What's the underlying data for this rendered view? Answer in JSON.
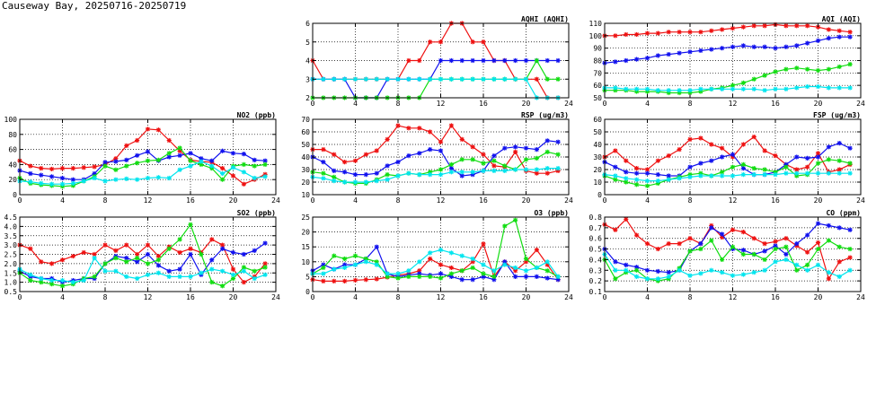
{
  "page": {
    "title": "Causeway Bay, 20250716-20250719"
  },
  "colors": {
    "red": "#ee1111",
    "blue": "#1111ee",
    "green": "#11dd11",
    "cyan": "#00e5ee"
  },
  "chart_data": [
    {
      "id": "aqhi",
      "type": "line",
      "title": "AQHI (AQHI)",
      "xlim": [
        0,
        24
      ],
      "xticks": [
        0,
        4,
        8,
        12,
        16,
        20,
        24
      ],
      "ylim": [
        2,
        6
      ],
      "yticks": [
        2,
        3,
        4,
        5,
        6
      ],
      "grid": true,
      "series": [
        {
          "color": "#ee1111",
          "values": [
            4,
            3,
            3,
            3,
            3,
            3,
            3,
            3,
            3,
            4,
            4,
            5,
            5,
            6,
            6,
            5,
            5,
            4,
            4,
            3,
            3,
            3,
            2,
            2
          ]
        },
        {
          "color": "#1111ee",
          "values": [
            3,
            3,
            3,
            3,
            2,
            2,
            2,
            3,
            3,
            3,
            3,
            3,
            4,
            4,
            4,
            4,
            4,
            4,
            4,
            4,
            4,
            4,
            4,
            4
          ]
        },
        {
          "color": "#11dd11",
          "values": [
            2,
            2,
            2,
            2,
            2,
            2,
            2,
            2,
            2,
            2,
            2,
            3,
            3,
            3,
            3,
            3,
            3,
            3,
            3,
            3,
            3,
            4,
            3,
            3
          ]
        },
        {
          "color": "#00e5ee",
          "values": [
            3,
            3,
            3,
            3,
            3,
            3,
            3,
            3,
            3,
            3,
            3,
            3,
            3,
            3,
            3,
            3,
            3,
            3,
            3,
            3,
            3,
            2,
            2,
            2
          ]
        }
      ]
    },
    {
      "id": "aqi",
      "type": "line",
      "title": "AQI (AQI)",
      "xlim": [
        0,
        24
      ],
      "xticks": [
        0,
        4,
        8,
        12,
        16,
        20,
        24
      ],
      "ylim": [
        50,
        110
      ],
      "yticks": [
        50,
        60,
        70,
        80,
        90,
        100,
        110
      ],
      "grid": true,
      "series": [
        {
          "color": "#ee1111",
          "values": [
            100,
            100,
            101,
            101,
            102,
            102,
            103,
            103,
            103,
            103,
            104,
            105,
            106,
            107,
            108,
            108,
            109,
            108,
            108,
            108,
            107,
            105,
            104,
            103
          ]
        },
        {
          "color": "#1111ee",
          "values": [
            78,
            79,
            80,
            81,
            82,
            84,
            85,
            86,
            87,
            88,
            89,
            90,
            91,
            92,
            91,
            91,
            90,
            91,
            92,
            94,
            96,
            98,
            99,
            99
          ]
        },
        {
          "color": "#11dd11",
          "values": [
            56,
            56,
            56,
            55,
            55,
            55,
            54,
            54,
            54,
            55,
            57,
            58,
            60,
            62,
            65,
            68,
            71,
            73,
            74,
            73,
            72,
            73,
            75,
            77
          ]
        },
        {
          "color": "#00e5ee",
          "values": [
            58,
            58,
            57,
            57,
            57,
            56,
            56,
            56,
            56,
            57,
            57,
            57,
            57,
            57,
            57,
            56,
            57,
            57,
            58,
            59,
            59,
            58,
            58,
            58
          ]
        }
      ]
    },
    {
      "id": "no2",
      "type": "line",
      "title": "NO2 (ppb)",
      "xlim": [
        0,
        24
      ],
      "xticks": [
        0,
        4,
        8,
        12,
        16,
        20,
        24
      ],
      "ylim": [
        0,
        100
      ],
      "yticks": [
        0,
        20,
        40,
        60,
        80,
        100
      ],
      "grid": true,
      "series": [
        {
          "color": "#ee1111",
          "values": [
            45,
            38,
            35,
            34,
            35,
            35,
            36,
            37,
            40,
            48,
            65,
            72,
            87,
            86,
            72,
            58,
            46,
            44,
            43,
            35,
            25,
            14,
            20,
            27
          ]
        },
        {
          "color": "#1111ee",
          "values": [
            32,
            28,
            26,
            24,
            22,
            20,
            20,
            28,
            43,
            44,
            46,
            52,
            57,
            45,
            50,
            52,
            55,
            48,
            45,
            58,
            55,
            54,
            46,
            45
          ]
        },
        {
          "color": "#11dd11",
          "values": [
            22,
            15,
            13,
            12,
            11,
            12,
            18,
            24,
            38,
            33,
            38,
            42,
            45,
            46,
            55,
            62,
            45,
            40,
            35,
            20,
            38,
            40,
            38,
            40
          ]
        },
        {
          "color": "#00e5ee",
          "values": [
            18,
            17,
            15,
            14,
            14,
            15,
            18,
            22,
            18,
            20,
            21,
            20,
            22,
            23,
            22,
            33,
            38,
            44,
            38,
            28,
            36,
            30,
            22,
            24
          ]
        }
      ]
    },
    {
      "id": "rsp",
      "type": "line",
      "title": "RSP (ug/m3)",
      "xlim": [
        0,
        24
      ],
      "xticks": [
        0,
        4,
        8,
        12,
        16,
        20,
        24
      ],
      "ylim": [
        10,
        70
      ],
      "yticks": [
        10,
        20,
        30,
        40,
        50,
        60,
        70
      ],
      "grid": true,
      "series": [
        {
          "color": "#ee1111",
          "values": [
            46,
            46,
            42,
            36,
            37,
            42,
            45,
            54,
            65,
            63,
            63,
            60,
            52,
            65,
            54,
            48,
            42,
            33,
            32,
            44,
            29,
            27,
            27,
            29
          ]
        },
        {
          "color": "#1111ee",
          "values": [
            40,
            36,
            29,
            28,
            26,
            26,
            27,
            33,
            36,
            41,
            43,
            46,
            45,
            31,
            25,
            26,
            29,
            41,
            47,
            48,
            47,
            46,
            53,
            52
          ]
        },
        {
          "color": "#11dd11",
          "values": [
            28,
            27,
            24,
            20,
            19,
            19,
            22,
            26,
            25,
            27,
            26,
            28,
            30,
            34,
            38,
            38,
            35,
            37,
            33,
            30,
            38,
            39,
            44,
            42
          ]
        },
        {
          "color": "#00e5ee",
          "values": [
            24,
            23,
            21,
            20,
            20,
            20,
            21,
            22,
            25,
            27,
            26,
            26,
            26,
            28,
            28,
            28,
            29,
            29,
            29,
            30,
            30,
            30,
            31,
            31
          ]
        }
      ]
    },
    {
      "id": "fsp",
      "type": "line",
      "title": "FSP (ug/m3)",
      "xlim": [
        0,
        24
      ],
      "xticks": [
        0,
        4,
        8,
        12,
        16,
        20,
        24
      ],
      "ylim": [
        0,
        60
      ],
      "yticks": [
        0,
        10,
        20,
        30,
        40,
        50,
        60
      ],
      "grid": true,
      "series": [
        {
          "color": "#ee1111",
          "values": [
            30,
            35,
            27,
            21,
            20,
            27,
            31,
            36,
            44,
            45,
            40,
            37,
            30,
            40,
            46,
            35,
            31,
            24,
            20,
            22,
            33,
            18,
            20,
            24
          ]
        },
        {
          "color": "#1111ee",
          "values": [
            26,
            22,
            18,
            17,
            17,
            16,
            15,
            15,
            22,
            25,
            27,
            30,
            32,
            21,
            16,
            16,
            18,
            24,
            30,
            29,
            30,
            38,
            41,
            37
          ]
        },
        {
          "color": "#11dd11",
          "values": [
            15,
            12,
            10,
            8,
            7,
            9,
            12,
            14,
            16,
            17,
            15,
            18,
            22,
            24,
            21,
            20,
            18,
            22,
            15,
            16,
            25,
            28,
            27,
            25
          ]
        },
        {
          "color": "#00e5ee",
          "values": [
            16,
            15,
            13,
            12,
            11,
            11,
            12,
            13,
            14,
            15,
            15,
            15,
            15,
            16,
            16,
            16,
            16,
            17,
            17,
            17,
            17,
            17,
            17,
            17
          ]
        }
      ]
    },
    {
      "id": "so2",
      "type": "line",
      "title": "SO2 (ppb)",
      "xlim": [
        0,
        24
      ],
      "xticks": [
        0,
        4,
        8,
        12,
        16,
        20,
        24
      ],
      "ylim": [
        0.5,
        4.5
      ],
      "yticks": [
        0.5,
        1.0,
        1.5,
        2.0,
        2.5,
        3.0,
        3.5,
        4.0,
        4.5
      ],
      "grid": true,
      "series": [
        {
          "color": "#ee1111",
          "values": [
            3.0,
            2.8,
            2.1,
            2.0,
            2.2,
            2.4,
            2.6,
            2.5,
            3.0,
            2.7,
            3.0,
            2.5,
            3.0,
            2.4,
            2.9,
            2.6,
            2.8,
            2.6,
            3.3,
            3.0,
            1.7,
            1.0,
            1.3,
            2.0
          ]
        },
        {
          "color": "#1111ee",
          "values": [
            1.6,
            1.3,
            1.2,
            1.2,
            1.0,
            1.1,
            1.2,
            1.2,
            2.0,
            2.4,
            2.3,
            2.1,
            2.5,
            1.9,
            1.6,
            1.7,
            2.5,
            1.4,
            2.2,
            2.8,
            2.6,
            2.5,
            2.7,
            3.1
          ]
        },
        {
          "color": "#11dd11",
          "values": [
            1.5,
            1.1,
            1.0,
            0.9,
            0.8,
            0.9,
            1.2,
            1.3,
            2.0,
            2.3,
            2.1,
            2.3,
            2.0,
            2.2,
            2.8,
            3.3,
            4.1,
            2.5,
            1.0,
            0.8,
            1.2,
            1.8,
            1.6,
            1.8
          ]
        },
        {
          "color": "#00e5ee",
          "values": [
            1.7,
            1.4,
            1.2,
            1.1,
            1.1,
            1.0,
            1.1,
            2.3,
            1.6,
            1.6,
            1.3,
            1.2,
            1.4,
            1.5,
            1.3,
            1.3,
            1.3,
            1.5,
            1.7,
            1.6,
            1.4,
            1.6,
            1.2,
            1.4
          ]
        }
      ]
    },
    {
      "id": "o3",
      "type": "line",
      "title": "O3 (ppb)",
      "xlim": [
        0,
        24
      ],
      "xticks": [
        0,
        4,
        8,
        12,
        16,
        20,
        24
      ],
      "ylim": [
        0,
        25
      ],
      "yticks": [
        0,
        5,
        10,
        15,
        20,
        25
      ],
      "grid": true,
      "series": [
        {
          "color": "#ee1111",
          "values": [
            4,
            3.5,
            3.5,
            3.5,
            3.8,
            4,
            4.2,
            4.8,
            5.5,
            6,
            7,
            11,
            9,
            8,
            7,
            10,
            16,
            5,
            10,
            7,
            10,
            14,
            9,
            4
          ]
        },
        {
          "color": "#1111ee",
          "values": [
            7,
            9,
            7.5,
            9,
            9,
            11,
            15,
            6,
            5,
            5.5,
            6,
            5.5,
            6,
            5,
            4,
            4,
            5,
            4,
            10,
            5,
            5,
            5,
            4.5,
            4
          ]
        },
        {
          "color": "#11dd11",
          "values": [
            6,
            8,
            12,
            11,
            12,
            11,
            10,
            5,
            4.5,
            5,
            5,
            5,
            4.5,
            6,
            7,
            8,
            6,
            5,
            22,
            24,
            11,
            8,
            7,
            5
          ]
        },
        {
          "color": "#00e5ee",
          "values": [
            6,
            6,
            7.5,
            8,
            9,
            10,
            9,
            6,
            6,
            7,
            10,
            13,
            14,
            13,
            12,
            11,
            9,
            7,
            9,
            8,
            7,
            8,
            10,
            5
          ]
        }
      ]
    },
    {
      "id": "co",
      "type": "line",
      "title": "CO (ppm)",
      "xlim": [
        0,
        24
      ],
      "xticks": [
        0,
        4,
        8,
        12,
        16,
        20,
        24
      ],
      "ylim": [
        0.1,
        0.8
      ],
      "yticks": [
        0.1,
        0.2,
        0.3,
        0.4,
        0.5,
        0.6,
        0.7,
        0.8
      ],
      "grid": true,
      "series": [
        {
          "color": "#ee1111",
          "values": [
            0.73,
            0.68,
            0.78,
            0.63,
            0.55,
            0.5,
            0.55,
            0.55,
            0.6,
            0.55,
            0.72,
            0.61,
            0.68,
            0.66,
            0.6,
            0.55,
            0.57,
            0.6,
            0.53,
            0.47,
            0.56,
            0.22,
            0.38,
            0.42
          ]
        },
        {
          "color": "#1111ee",
          "values": [
            0.5,
            0.38,
            0.35,
            0.33,
            0.3,
            0.29,
            0.28,
            0.3,
            0.48,
            0.55,
            0.7,
            0.64,
            0.5,
            0.49,
            0.45,
            0.48,
            0.53,
            0.45,
            0.55,
            0.63,
            0.74,
            0.72,
            0.7,
            0.68
          ]
        },
        {
          "color": "#11dd11",
          "values": [
            0.4,
            0.22,
            0.28,
            0.3,
            0.22,
            0.2,
            0.22,
            0.32,
            0.48,
            0.5,
            0.58,
            0.4,
            0.52,
            0.45,
            0.45,
            0.4,
            0.5,
            0.52,
            0.3,
            0.35,
            0.5,
            0.58,
            0.52,
            0.5
          ]
        },
        {
          "color": "#00e5ee",
          "values": [
            0.45,
            0.3,
            0.3,
            0.24,
            0.22,
            0.22,
            0.24,
            0.3,
            0.25,
            0.27,
            0.3,
            0.28,
            0.25,
            0.26,
            0.28,
            0.3,
            0.38,
            0.4,
            0.35,
            0.3,
            0.35,
            0.28,
            0.24,
            0.3
          ]
        }
      ]
    }
  ]
}
